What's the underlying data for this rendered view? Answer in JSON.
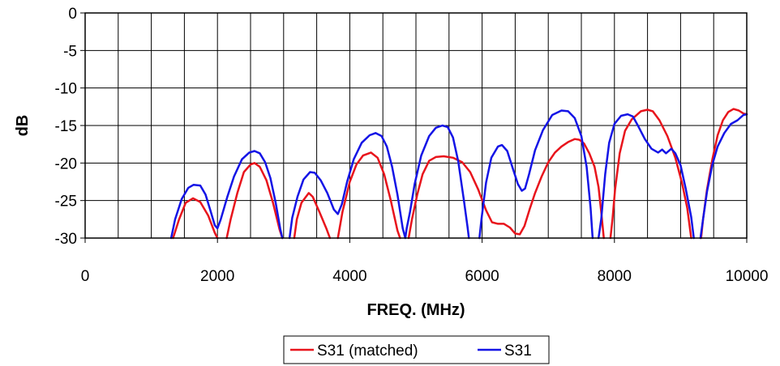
{
  "chart_data": {
    "type": "line",
    "title": "",
    "xlabel": "FREQ. (MHz)",
    "ylabel": "dB",
    "xlim": [
      0,
      10000
    ],
    "ylim": [
      -30,
      0
    ],
    "x_ticks": [
      0,
      2000,
      4000,
      6000,
      8000,
      10000
    ],
    "y_ticks": [
      0,
      -5,
      -10,
      -15,
      -20,
      -25,
      -30
    ],
    "x_tick_labels": [
      "0",
      "2000",
      "4000",
      "6000",
      "8000",
      "10000"
    ],
    "y_tick_labels": [
      "0",
      "-5",
      "-10",
      "-15",
      "-20",
      "-25",
      "-30"
    ],
    "x_minor_step": 500,
    "grid": true,
    "legend_position": "bottom-center",
    "series": [
      {
        "name": "S31 (matched)",
        "color": "#e8141c",
        "segments": [
          [
            [
              1330,
              -30
            ],
            [
              1420,
              -27.5
            ],
            [
              1520,
              -25.3
            ],
            [
              1630,
              -24.7
            ],
            [
              1740,
              -25.2
            ],
            [
              1860,
              -27
            ],
            [
              1960,
              -29.3
            ],
            [
              2000,
              -30
            ]
          ],
          [
            [
              2140,
              -30
            ],
            [
              2200,
              -27.5
            ],
            [
              2300,
              -24
            ],
            [
              2400,
              -21.2
            ],
            [
              2500,
              -20.2
            ],
            [
              2560,
              -20
            ],
            [
              2640,
              -20.5
            ],
            [
              2740,
              -22.3
            ],
            [
              2840,
              -25.3
            ],
            [
              2940,
              -28.9
            ],
            [
              2980,
              -30
            ]
          ],
          [
            [
              3160,
              -30
            ],
            [
              3200,
              -27.5
            ],
            [
              3270,
              -25.3
            ],
            [
              3380,
              -24
            ],
            [
              3440,
              -24.5
            ],
            [
              3540,
              -26.5
            ],
            [
              3650,
              -28.8
            ],
            [
              3700,
              -30
            ]
          ],
          [
            [
              3820,
              -30
            ],
            [
              3890,
              -26.5
            ],
            [
              4000,
              -22.5
            ],
            [
              4100,
              -20.2
            ],
            [
              4200,
              -19
            ],
            [
              4320,
              -18.6
            ],
            [
              4420,
              -19.3
            ],
            [
              4520,
              -21.5
            ],
            [
              4620,
              -25
            ],
            [
              4720,
              -29
            ],
            [
              4760,
              -30
            ]
          ],
          [
            [
              4890,
              -30
            ],
            [
              4940,
              -27.5
            ],
            [
              5020,
              -24.2
            ],
            [
              5100,
              -21.5
            ],
            [
              5200,
              -19.7
            ],
            [
              5300,
              -19.2
            ],
            [
              5420,
              -19.1
            ],
            [
              5560,
              -19.3
            ],
            [
              5700,
              -19.9
            ],
            [
              5820,
              -21.2
            ],
            [
              5940,
              -23.5
            ],
            [
              6060,
              -26.3
            ],
            [
              6150,
              -27.9
            ],
            [
              6240,
              -28.1
            ],
            [
              6330,
              -28.1
            ],
            [
              6420,
              -28.6
            ],
            [
              6500,
              -29.4
            ],
            [
              6570,
              -29.5
            ],
            [
              6640,
              -28.4
            ],
            [
              6720,
              -26.1
            ],
            [
              6800,
              -24
            ],
            [
              6900,
              -21.8
            ],
            [
              7000,
              -19.9
            ],
            [
              7100,
              -18.6
            ],
            [
              7200,
              -17.8
            ],
            [
              7300,
              -17.2
            ],
            [
              7400,
              -16.8
            ],
            [
              7470,
              -16.9
            ],
            [
              7540,
              -17.4
            ],
            [
              7620,
              -18.7
            ],
            [
              7700,
              -20.5
            ],
            [
              7760,
              -23.2
            ],
            [
              7800,
              -26.5
            ],
            [
              7840,
              -30
            ]
          ],
          [
            [
              7940,
              -30
            ],
            [
              7970,
              -27.5
            ],
            [
              8010,
              -23.5
            ],
            [
              8080,
              -18.7
            ],
            [
              8160,
              -15.7
            ],
            [
              8260,
              -14.2
            ],
            [
              8400,
              -13.1
            ],
            [
              8500,
              -12.9
            ],
            [
              8580,
              -13.1
            ],
            [
              8680,
              -14.3
            ],
            [
              8800,
              -16.4
            ],
            [
              8920,
              -19.3
            ],
            [
              9020,
              -22.6
            ],
            [
              9100,
              -26
            ],
            [
              9160,
              -30
            ]
          ],
          [
            [
              9310,
              -30
            ],
            [
              9340,
              -27.5
            ],
            [
              9400,
              -23.5
            ],
            [
              9480,
              -19.5
            ],
            [
              9560,
              -16.3
            ],
            [
              9640,
              -14.3
            ],
            [
              9720,
              -13.2
            ],
            [
              9800,
              -12.8
            ],
            [
              9880,
              -13
            ],
            [
              9950,
              -13.4
            ],
            [
              10000,
              -13.5
            ]
          ]
        ]
      },
      {
        "name": "S31",
        "color": "#1414e6",
        "segments": [
          [
            [
              1300,
              -30
            ],
            [
              1360,
              -27.5
            ],
            [
              1460,
              -24.8
            ],
            [
              1560,
              -23.3
            ],
            [
              1640,
              -22.9
            ],
            [
              1740,
              -23
            ],
            [
              1820,
              -24.2
            ],
            [
              1900,
              -26.5
            ],
            [
              1960,
              -28.3
            ],
            [
              2000,
              -28.7
            ],
            [
              2050,
              -27.5
            ],
            [
              2150,
              -24.5
            ],
            [
              2250,
              -21.8
            ],
            [
              2370,
              -19.5
            ],
            [
              2480,
              -18.6
            ],
            [
              2560,
              -18.4
            ],
            [
              2640,
              -18.7
            ],
            [
              2720,
              -19.9
            ],
            [
              2800,
              -22
            ],
            [
              2880,
              -25.3
            ],
            [
              2950,
              -28.8
            ],
            [
              2980,
              -30
            ]
          ],
          [
            [
              3090,
              -30
            ],
            [
              3130,
              -27.3
            ],
            [
              3210,
              -24.5
            ],
            [
              3300,
              -22.2
            ],
            [
              3400,
              -21.2
            ],
            [
              3470,
              -21.3
            ],
            [
              3560,
              -22.3
            ],
            [
              3660,
              -24
            ],
            [
              3760,
              -26.2
            ],
            [
              3820,
              -26.8
            ],
            [
              3880,
              -25.5
            ],
            [
              3960,
              -22.5
            ],
            [
              4060,
              -19.5
            ],
            [
              4180,
              -17.3
            ],
            [
              4300,
              -16.3
            ],
            [
              4390,
              -16
            ],
            [
              4480,
              -16.4
            ],
            [
              4560,
              -17.8
            ],
            [
              4640,
              -20.5
            ],
            [
              4720,
              -24.2
            ],
            [
              4800,
              -28.7
            ],
            [
              4840,
              -30
            ],
            [
              4860,
              -28.7
            ],
            [
              4910,
              -26.5
            ],
            [
              4980,
              -22.8
            ],
            [
              5080,
              -19
            ],
            [
              5200,
              -16.4
            ],
            [
              5300,
              -15.3
            ],
            [
              5400,
              -15
            ],
            [
              5480,
              -15.2
            ],
            [
              5560,
              -16.6
            ],
            [
              5640,
              -19.8
            ],
            [
              5720,
              -24.7
            ],
            [
              5780,
              -28.5
            ],
            [
              5800,
              -30
            ]
          ],
          [
            [
              5960,
              -30
            ],
            [
              5990,
              -27.5
            ],
            [
              6060,
              -22.6
            ],
            [
              6140,
              -19.3
            ],
            [
              6240,
              -17.8
            ],
            [
              6300,
              -17.6
            ],
            [
              6380,
              -18.4
            ],
            [
              6460,
              -20.6
            ],
            [
              6540,
              -22.8
            ],
            [
              6600,
              -23.7
            ],
            [
              6650,
              -23.4
            ],
            [
              6710,
              -21.5
            ],
            [
              6800,
              -18.3
            ],
            [
              6920,
              -15.6
            ],
            [
              7060,
              -13.6
            ],
            [
              7200,
              -13
            ],
            [
              7300,
              -13.1
            ],
            [
              7400,
              -14
            ],
            [
              7500,
              -16.4
            ],
            [
              7580,
              -20.5
            ],
            [
              7640,
              -26
            ],
            [
              7670,
              -30
            ]
          ],
          [
            [
              7760,
              -30
            ],
            [
              7800,
              -27.5
            ],
            [
              7860,
              -21.5
            ],
            [
              7920,
              -17.3
            ],
            [
              8000,
              -14.8
            ],
            [
              8100,
              -13.7
            ],
            [
              8200,
              -13.5
            ],
            [
              8280,
              -13.8
            ],
            [
              8360,
              -15.1
            ],
            [
              8460,
              -16.8
            ],
            [
              8560,
              -18.1
            ],
            [
              8660,
              -18.6
            ],
            [
              8720,
              -18.2
            ],
            [
              8780,
              -18.7
            ],
            [
              8860,
              -18.1
            ],
            [
              8920,
              -18.7
            ],
            [
              9000,
              -20.3
            ],
            [
              9080,
              -23.5
            ],
            [
              9160,
              -27.2
            ],
            [
              9200,
              -30
            ]
          ],
          [
            [
              9300,
              -30
            ],
            [
              9340,
              -27.5
            ],
            [
              9400,
              -23.8
            ],
            [
              9480,
              -20.2
            ],
            [
              9560,
              -17.8
            ],
            [
              9660,
              -16
            ],
            [
              9760,
              -14.8
            ],
            [
              9860,
              -14.3
            ],
            [
              9950,
              -13.6
            ],
            [
              10000,
              -13.5
            ]
          ]
        ]
      }
    ]
  }
}
